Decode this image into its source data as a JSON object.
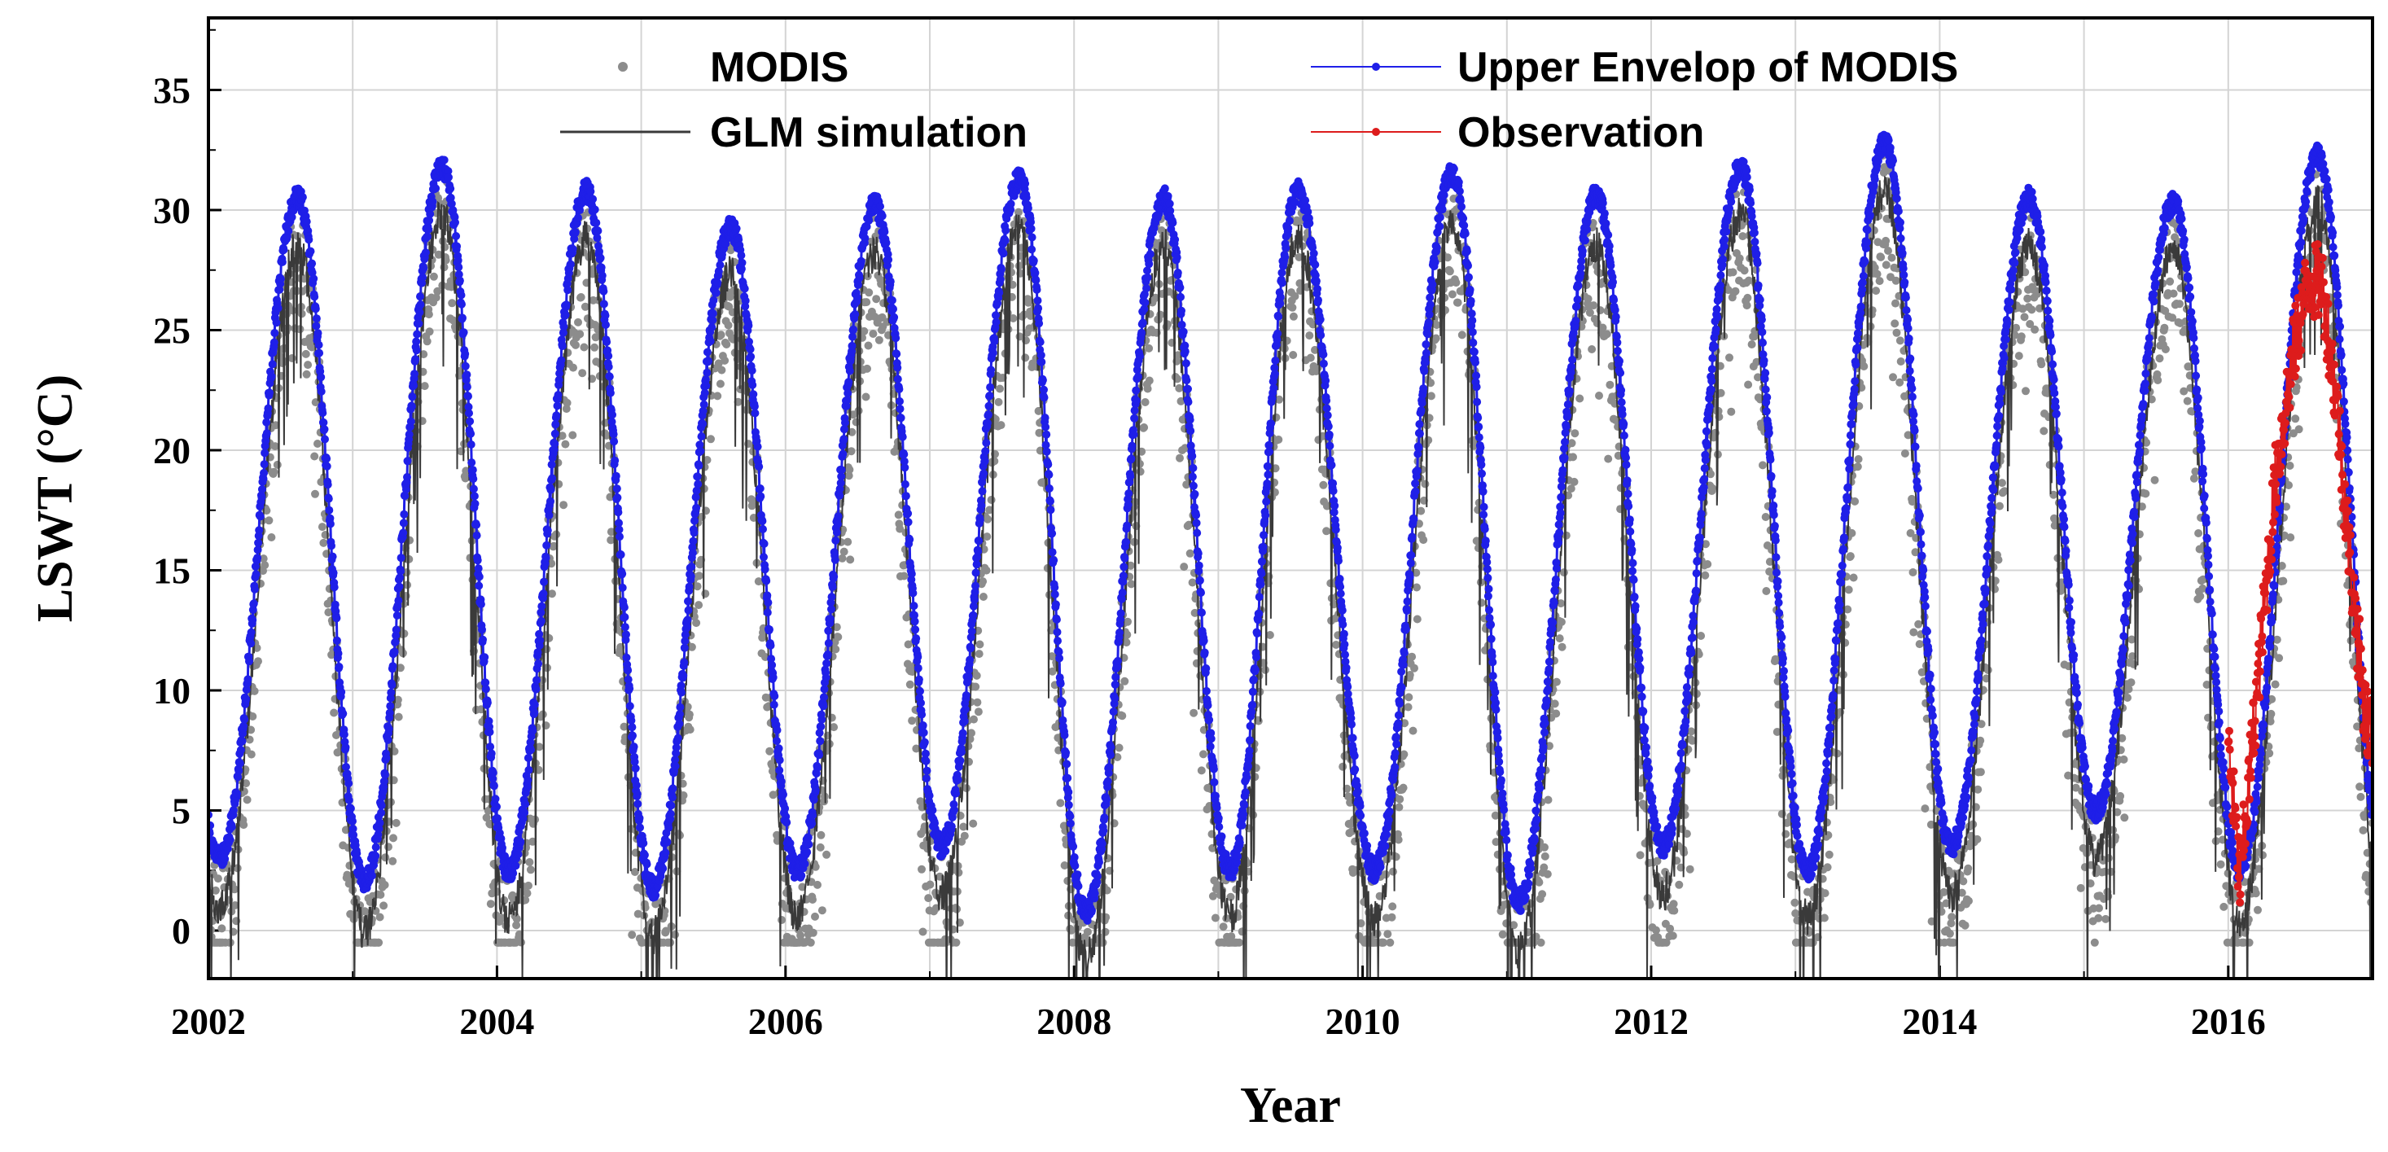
{
  "chart_data": {
    "type": "line",
    "xlabel": "Year",
    "ylabel": "LSWT (°C)",
    "xlim": [
      2002,
      2017
    ],
    "ylim": [
      -2,
      38
    ],
    "xticks": [
      2002,
      2004,
      2006,
      2008,
      2010,
      2012,
      2014,
      2016
    ],
    "xtick_labels": [
      "2002",
      "2004",
      "2006",
      "2008",
      "2010",
      "2012",
      "2014",
      "2016"
    ],
    "yticks": [
      0,
      5,
      10,
      15,
      20,
      25,
      30,
      35
    ],
    "ytick_labels": [
      "0",
      "5",
      "10",
      "15",
      "20",
      "25",
      "30",
      "35"
    ],
    "grid": true,
    "legend_position": "top",
    "legend": [
      {
        "label": "MODIS",
        "style": "marker"
      },
      {
        "label": "Upper Envelop of MODIS",
        "style": "line-marker"
      },
      {
        "label": "GLM simulation",
        "style": "line"
      },
      {
        "label": "Observation",
        "style": "line-marker"
      }
    ],
    "series": [
      {
        "name": "Upper Envelop of MODIS",
        "color": "#1f1fe8",
        "yearly_peaks": [
          {
            "year": 2002,
            "peak_x": 2002.62,
            "max": 30.5,
            "min": 3.0
          },
          {
            "year": 2003,
            "peak_x": 2003.62,
            "max": 31.8,
            "min": 2.0
          },
          {
            "year": 2004,
            "peak_x": 2004.62,
            "max": 30.8,
            "min": 2.5
          },
          {
            "year": 2005,
            "peak_x": 2005.62,
            "max": 29.3,
            "min": 1.8
          },
          {
            "year": 2006,
            "peak_x": 2006.62,
            "max": 30.2,
            "min": 2.5
          },
          {
            "year": 2007,
            "peak_x": 2007.62,
            "max": 31.3,
            "min": 3.5
          },
          {
            "year": 2008,
            "peak_x": 2008.62,
            "max": 30.5,
            "min": 0.8
          },
          {
            "year": 2009,
            "peak_x": 2009.55,
            "max": 30.8,
            "min": 2.5
          },
          {
            "year": 2010,
            "peak_x": 2010.62,
            "max": 31.5,
            "min": 2.5
          },
          {
            "year": 2011,
            "peak_x": 2011.62,
            "max": 30.6,
            "min": 1.2
          },
          {
            "year": 2012,
            "peak_x": 2012.62,
            "max": 31.8,
            "min": 3.5
          },
          {
            "year": 2013,
            "peak_x": 2013.62,
            "max": 32.8,
            "min": 2.5
          },
          {
            "year": 2014,
            "peak_x": 2014.62,
            "max": 30.5,
            "min": 3.5
          },
          {
            "year": 2015,
            "peak_x": 2015.62,
            "max": 30.3,
            "min": 5.0
          },
          {
            "year": 2016,
            "peak_x": 2016.62,
            "max": 32.3,
            "min": 2.5
          }
        ]
      },
      {
        "name": "MODIS",
        "color": "#8c8c8c",
        "note": "scatter points spread around the envelope, mostly below it by 0-6 °C"
      },
      {
        "name": "GLM simulation",
        "color": "#3a3a3a",
        "note": "seasonal curve tracking the envelope, 1-3 °C lower with spikes"
      },
      {
        "name": "Observation",
        "color": "#dd1c1c",
        "x_range": [
          2016.0,
          2017.0
        ],
        "points": [
          [
            2016.0,
            8.0
          ],
          [
            2016.08,
            2.0
          ],
          [
            2016.2,
            10.0
          ],
          [
            2016.33,
            19.0
          ],
          [
            2016.45,
            24.0
          ],
          [
            2016.55,
            27.0
          ],
          [
            2016.65,
            27.0
          ],
          [
            2016.75,
            22.0
          ],
          [
            2016.85,
            15.0
          ],
          [
            2016.95,
            9.0
          ],
          [
            2017.0,
            8.0
          ]
        ]
      }
    ]
  }
}
